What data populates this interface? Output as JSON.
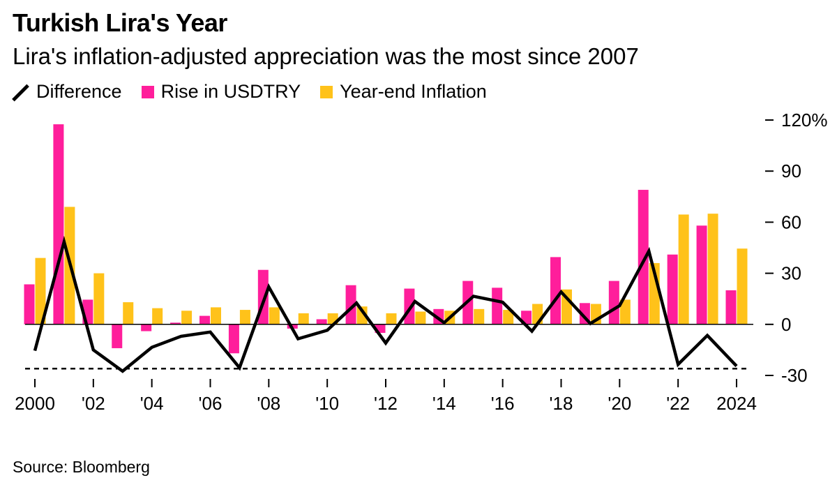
{
  "title": "Turkish Lira's Year",
  "subtitle": "Lira's inflation-adjusted appreciation was the most since 2007",
  "legend": [
    {
      "label": "Difference",
      "color": "#000000",
      "kind": "line"
    },
    {
      "label": "Rise in USDTRY",
      "color": "#ff1e9b",
      "kind": "bar"
    },
    {
      "label": "Year-end Inflation",
      "color": "#ffc21a",
      "kind": "bar"
    }
  ],
  "source": "Source: Bloomberg",
  "chart_data": {
    "type": "bar",
    "x": [
      2000,
      2001,
      2002,
      2003,
      2004,
      2005,
      2006,
      2007,
      2008,
      2009,
      2010,
      2011,
      2012,
      2013,
      2014,
      2015,
      2016,
      2017,
      2018,
      2019,
      2020,
      2021,
      2022,
      2023,
      2024
    ],
    "x_tick_labels": [
      "2000",
      "'02",
      "'04",
      "'06",
      "'08",
      "'10",
      "'12",
      "'14",
      "'16",
      "'18",
      "'20",
      "'22",
      "2024"
    ],
    "y_ticks": [
      {
        "value": 120,
        "label": "120%"
      },
      {
        "value": 90,
        "label": "90"
      },
      {
        "value": 60,
        "label": "60"
      },
      {
        "value": 30,
        "label": "30"
      },
      {
        "value": 0,
        "label": "0"
      },
      {
        "value": -30,
        "label": "-30"
      }
    ],
    "ylim": [
      -30,
      120
    ],
    "reference_line": {
      "value": -26,
      "style": "dashed"
    },
    "series": [
      {
        "name": "Rise in USDTRY",
        "type": "bar",
        "color": "#ff1e9b",
        "values": [
          23.5,
          117.5,
          14.5,
          -14,
          -4,
          1,
          5,
          -17,
          32,
          -2.5,
          3,
          23,
          -5,
          21,
          9,
          25.5,
          21.5,
          8,
          39.5,
          12.5,
          25.5,
          79,
          41,
          58,
          20
        ]
      },
      {
        "name": "Year-end Inflation",
        "type": "bar",
        "color": "#ffc21a",
        "values": [
          39,
          69,
          30,
          13,
          9.5,
          8,
          10,
          8.5,
          10,
          6.5,
          6.5,
          10.5,
          6.5,
          7.5,
          8,
          9,
          8.5,
          12,
          20.5,
          12,
          14.5,
          36,
          64.5,
          65,
          44.5
        ]
      },
      {
        "name": "Difference",
        "type": "line",
        "color": "#000000",
        "values": [
          -15.5,
          48.5,
          -15,
          -27.5,
          -13.5,
          -7,
          -4.5,
          -25.5,
          22,
          -8.5,
          -3.5,
          12.5,
          -11,
          13.5,
          1,
          16.5,
          13,
          -4,
          19,
          0.5,
          11,
          43,
          -23.5,
          -6.5,
          -24.5
        ]
      }
    ]
  }
}
